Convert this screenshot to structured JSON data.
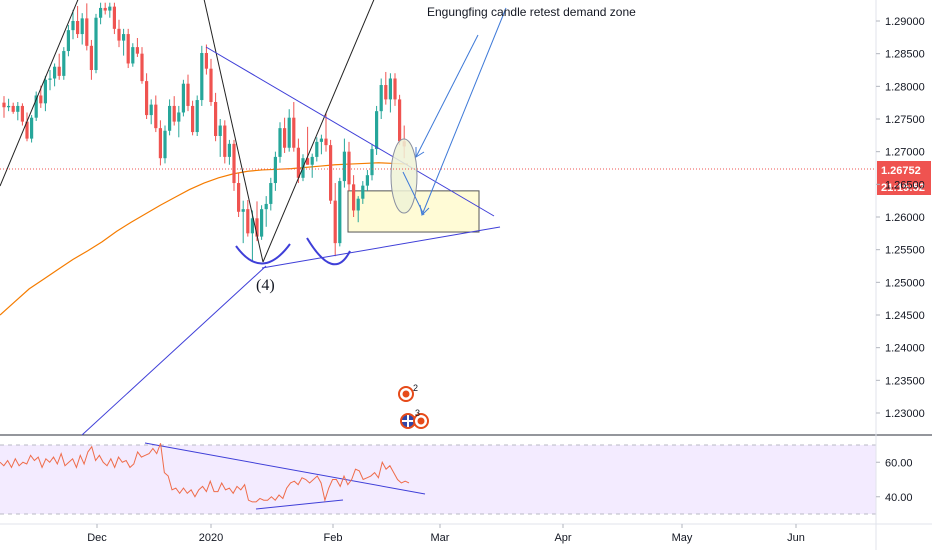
{
  "chart_data": [
    {
      "type": "candlestick",
      "title": "",
      "y_axis_ticks": [
        "1.29000",
        "1.28500",
        "1.28000",
        "1.27500",
        "1.27000",
        "1.26500",
        "1.26000",
        "1.25500",
        "1.25000",
        "1.24500",
        "1.24000",
        "1.23500",
        "1.23000"
      ],
      "x_axis_ticks": [
        "Dec",
        "2020",
        "Feb",
        "Mar",
        "Apr",
        "May",
        "Jun"
      ],
      "ylim": [
        1.2266,
        1.2928
      ],
      "price_label": "1.26752",
      "countdown_label": "21:15:52",
      "annotations": {
        "text": "Engungfing candle retest demand zone",
        "wave": "(4)",
        "event1_count": "2",
        "event2_count": "3"
      },
      "colors": {
        "up": "#26a69a",
        "down": "#ef5350",
        "ma": "#f57c00",
        "drawing": "#3f3fd8",
        "zone_fill": "#fffbd6",
        "price_tag": "#ef5350"
      },
      "candles_ohlc": [
        [
          1.2775,
          1.2785,
          1.2752,
          1.2768
        ],
        [
          1.2768,
          1.2781,
          1.2762,
          1.277
        ],
        [
          1.277,
          1.2775,
          1.2758,
          1.2761
        ],
        [
          1.2761,
          1.2776,
          1.2748,
          1.277
        ],
        [
          1.277,
          1.2774,
          1.274,
          1.2746
        ],
        [
          1.2746,
          1.276,
          1.2716,
          1.272
        ],
        [
          1.272,
          1.2756,
          1.2714,
          1.2752
        ],
        [
          1.2752,
          1.2792,
          1.2747,
          1.2786
        ],
        [
          1.2786,
          1.2801,
          1.2767,
          1.2774
        ],
        [
          1.2774,
          1.2816,
          1.2762,
          1.281
        ],
        [
          1.281,
          1.2825,
          1.2794,
          1.2812
        ],
        [
          1.2812,
          1.2835,
          1.28,
          1.283
        ],
        [
          1.283,
          1.285,
          1.281,
          1.2816
        ],
        [
          1.2816,
          1.286,
          1.281,
          1.2854
        ],
        [
          1.2854,
          1.2894,
          1.2846,
          1.2886
        ],
        [
          1.2886,
          1.2917,
          1.2872,
          1.29
        ],
        [
          1.29,
          1.2923,
          1.2874,
          1.288
        ],
        [
          1.288,
          1.2912,
          1.2864,
          1.2904
        ],
        [
          1.2904,
          1.2927,
          1.2855,
          1.2862
        ],
        [
          1.2862,
          1.2871,
          1.281,
          1.2825
        ],
        [
          1.2825,
          1.2911,
          1.282,
          1.2905
        ],
        [
          1.2905,
          1.2928,
          1.2895,
          1.292
        ],
        [
          1.292,
          1.2928,
          1.291,
          1.2916
        ],
        [
          1.2916,
          1.2928,
          1.2905,
          1.2922
        ],
        [
          1.2922,
          1.2928,
          1.288,
          1.2888
        ],
        [
          1.2888,
          1.2902,
          1.286,
          1.287
        ],
        [
          1.287,
          1.2888,
          1.2847,
          1.288
        ],
        [
          1.288,
          1.2888,
          1.2828,
          1.2835
        ],
        [
          1.2835,
          1.2866,
          1.283,
          1.286
        ],
        [
          1.286,
          1.2874,
          1.2845,
          1.285
        ],
        [
          1.285,
          1.286,
          1.2804,
          1.2808
        ],
        [
          1.2808,
          1.282,
          1.275,
          1.2756
        ],
        [
          1.2756,
          1.278,
          1.2742,
          1.2772
        ],
        [
          1.2772,
          1.2786,
          1.273,
          1.2736
        ],
        [
          1.2736,
          1.2748,
          1.2679,
          1.269
        ],
        [
          1.269,
          1.274,
          1.2682,
          1.2732
        ],
        [
          1.2732,
          1.278,
          1.2725,
          1.277
        ],
        [
          1.277,
          1.2785,
          1.274,
          1.2746
        ],
        [
          1.2746,
          1.277,
          1.2722,
          1.276
        ],
        [
          1.276,
          1.281,
          1.2754,
          1.2804
        ],
        [
          1.2804,
          1.2818,
          1.2762,
          1.277
        ],
        [
          1.277,
          1.2778,
          1.2725,
          1.273
        ],
        [
          1.273,
          1.2786,
          1.2724,
          1.2779
        ],
        [
          1.2779,
          1.2862,
          1.277,
          1.2851
        ],
        [
          1.2851,
          1.2864,
          1.2818,
          1.2827
        ],
        [
          1.2827,
          1.2842,
          1.277,
          1.2776
        ],
        [
          1.2776,
          1.279,
          1.2716,
          1.2724
        ],
        [
          1.2724,
          1.275,
          1.2692,
          1.274
        ],
        [
          1.274,
          1.2748,
          1.2682,
          1.2692
        ],
        [
          1.2692,
          1.2718,
          1.268,
          1.2712
        ],
        [
          1.2712,
          1.2718,
          1.264,
          1.2652
        ],
        [
          1.2652,
          1.2668,
          1.26,
          1.2608
        ],
        [
          1.2608,
          1.2625,
          1.256,
          1.2612
        ],
        [
          1.2612,
          1.2626,
          1.257,
          1.2575
        ],
        [
          1.2575,
          1.261,
          1.2533,
          1.2598
        ],
        [
          1.2598,
          1.2624,
          1.2563,
          1.257
        ],
        [
          1.257,
          1.2618,
          1.2565,
          1.2612
        ],
        [
          1.2612,
          1.2632,
          1.2585,
          1.262
        ],
        [
          1.262,
          1.266,
          1.261,
          1.2652
        ],
        [
          1.2652,
          1.27,
          1.264,
          1.2692
        ],
        [
          1.2692,
          1.2745,
          1.2683,
          1.2736
        ],
        [
          1.2736,
          1.2752,
          1.2698,
          1.2706
        ],
        [
          1.2706,
          1.2765,
          1.27,
          1.2752
        ],
        [
          1.2752,
          1.2776,
          1.27,
          1.2706
        ],
        [
          1.2706,
          1.272,
          1.2652,
          1.266
        ],
        [
          1.266,
          1.2696,
          1.2655,
          1.269
        ],
        [
          1.269,
          1.2738,
          1.268,
          1.268
        ],
        [
          1.268,
          1.2697,
          1.266,
          1.2692
        ],
        [
          1.2692,
          1.2722,
          1.2685,
          1.2715
        ],
        [
          1.2715,
          1.2726,
          1.2696,
          1.272
        ],
        [
          1.272,
          1.276,
          1.27,
          1.271
        ],
        [
          1.271,
          1.2718,
          1.262,
          1.2625
        ],
        [
          1.2625,
          1.2652,
          1.254,
          1.256
        ],
        [
          1.256,
          1.266,
          1.2555,
          1.2655
        ],
        [
          1.2655,
          1.272,
          1.2645,
          1.27
        ],
        [
          1.27,
          1.2715,
          1.264,
          1.265
        ],
        [
          1.265,
          1.2664,
          1.26,
          1.261
        ],
        [
          1.261,
          1.2632,
          1.2592,
          1.2628
        ],
        [
          1.2628,
          1.2655,
          1.262,
          1.2648
        ],
        [
          1.2648,
          1.2672,
          1.264,
          1.2664
        ],
        [
          1.2664,
          1.2712,
          1.2656,
          1.2704
        ],
        [
          1.2704,
          1.277,
          1.2695,
          1.2762
        ],
        [
          1.2762,
          1.2812,
          1.275,
          1.2802
        ],
        [
          1.2802,
          1.2822,
          1.2772,
          1.278
        ],
        [
          1.278,
          1.282,
          1.276,
          1.2812
        ],
        [
          1.2812,
          1.282,
          1.277,
          1.278
        ],
        [
          1.278,
          1.2787,
          1.271,
          1.2716
        ],
        [
          1.2716,
          1.274,
          1.269,
          1.2708
        ]
      ],
      "ma_values": [
        1.245,
        1.247,
        1.249,
        1.2505,
        1.252,
        1.2535,
        1.2548,
        1.2562,
        1.2578,
        1.2592,
        1.2605,
        1.2618,
        1.263,
        1.2642,
        1.2652,
        1.266,
        1.2666,
        1.267,
        1.2672,
        1.2673,
        1.2674,
        1.2676,
        1.2678,
        1.268,
        1.2681,
        1.2682,
        1.2683,
        1.2682,
        1.2681
      ],
      "demand_zone": {
        "x_from": "Feb",
        "price_top": 1.264,
        "price_bottom": 1.2577
      }
    },
    {
      "type": "line",
      "title": "",
      "y_axis_ticks": [
        "60.00",
        "40.00"
      ],
      "ylim": [
        30,
        75
      ],
      "bands": [
        70,
        30
      ],
      "series": [
        {
          "values": [
            60,
            58,
            61,
            57,
            62,
            58,
            60,
            59,
            64,
            61,
            63,
            57,
            62,
            60,
            63,
            59,
            65,
            58,
            60,
            62,
            57,
            64,
            59,
            66,
            69,
            61,
            64,
            60,
            58,
            62,
            57,
            63,
            60,
            61,
            57,
            59,
            66,
            63,
            64,
            65,
            68,
            65,
            71,
            54,
            52,
            44,
            45,
            42,
            45,
            42,
            44,
            40,
            44,
            46,
            43,
            49,
            43,
            43,
            48,
            44,
            45,
            42,
            46,
            44,
            47,
            38,
            37,
            37,
            39,
            38,
            38,
            40,
            38,
            41,
            39,
            45,
            48,
            49,
            47,
            51,
            50,
            48,
            50,
            52,
            48,
            38,
            45,
            50,
            50,
            46,
            52,
            47,
            50,
            56,
            55,
            50,
            51,
            52,
            54,
            51,
            60,
            56,
            58,
            54,
            50,
            48,
            49,
            48
          ]
        }
      ]
    }
  ]
}
